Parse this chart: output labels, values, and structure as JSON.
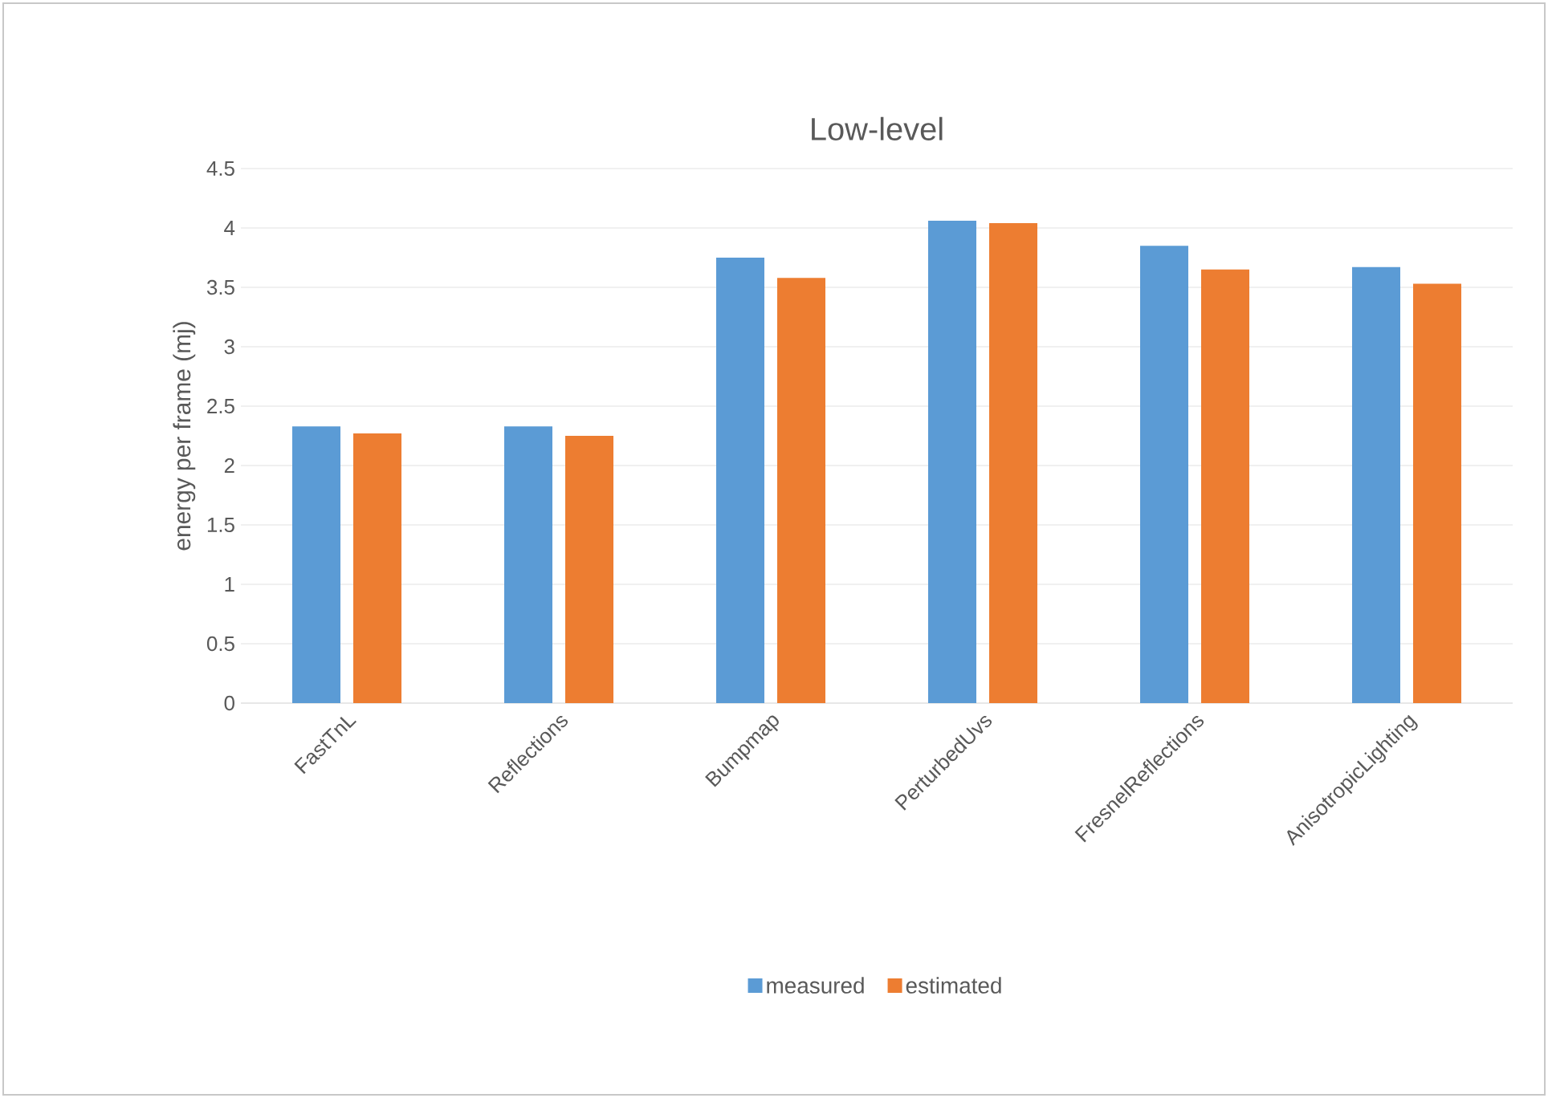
{
  "chart_data": {
    "type": "bar",
    "title": "Low-level",
    "ylabel": "energy per frame (mj)",
    "categories": [
      "FastTnL",
      "Reflections",
      "Bumpmap",
      "PerturbedUvs",
      "FresnelReflections",
      "AnisotropicLighting"
    ],
    "series": [
      {
        "name": "measured",
        "color": "#5b9bd5",
        "values": [
          2.33,
          2.33,
          3.75,
          4.06,
          3.85,
          3.67
        ]
      },
      {
        "name": "estimated",
        "color": "#ed7d31",
        "values": [
          2.27,
          2.25,
          3.58,
          4.04,
          3.65,
          3.53
        ]
      }
    ],
    "ylim": [
      0,
      4.5
    ],
    "yticks": [
      0,
      0.5,
      1,
      1.5,
      2,
      2.5,
      3,
      3.5,
      4,
      4.5
    ],
    "grid": "y",
    "legend": "bottom"
  }
}
